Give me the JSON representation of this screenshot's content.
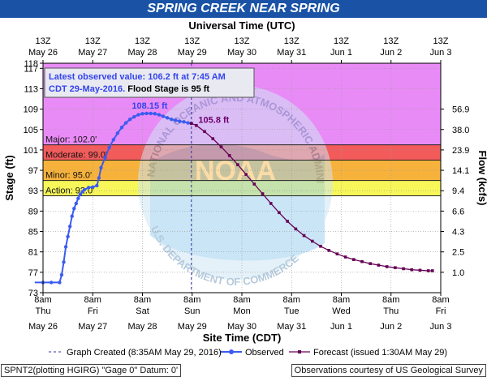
{
  "window": {
    "title": "SPRING CREEK NEAR SPRING"
  },
  "chart_data": {
    "type": "line",
    "title": "SPRING CREEK NEAR SPRING",
    "top_axis_label": "Universal Time (UTC)",
    "xlabel": "Site Time (CDT)",
    "ylabel": "Stage (ft)",
    "y2label": "Flow (kcfs)",
    "ylim": [
      73,
      118
    ],
    "xlim_hours": [
      0,
      192
    ],
    "y_ticks": [
      73,
      77,
      81,
      85,
      89,
      93,
      97,
      101,
      105,
      109,
      113,
      117,
      118
    ],
    "flow_ticks": [
      {
        "stage": 77,
        "label": "1.0"
      },
      {
        "stage": 81,
        "label": "2.5"
      },
      {
        "stage": 85,
        "label": "4.3"
      },
      {
        "stage": 89,
        "label": "6.6"
      },
      {
        "stage": 93,
        "label": "9.4"
      },
      {
        "stage": 97,
        "label": "14.1"
      },
      {
        "stage": 101,
        "label": "23.9"
      },
      {
        "stage": 105,
        "label": "38.0"
      },
      {
        "stage": 109,
        "label": "56.9"
      }
    ],
    "top_ticks": [
      {
        "hour": 0,
        "time": "13Z",
        "date": "May 26"
      },
      {
        "hour": 24,
        "time": "13Z",
        "date": "May 27"
      },
      {
        "hour": 48,
        "time": "13Z",
        "date": "May 28"
      },
      {
        "hour": 72,
        "time": "13Z",
        "date": "May 29"
      },
      {
        "hour": 96,
        "time": "13Z",
        "date": "May 30"
      },
      {
        "hour": 120,
        "time": "13Z",
        "date": "May 31"
      },
      {
        "hour": 144,
        "time": "13Z",
        "date": "Jun 1"
      },
      {
        "hour": 168,
        "time": "13Z",
        "date": "Jun 2"
      },
      {
        "hour": 192,
        "time": "13Z",
        "date": "Jun 3"
      }
    ],
    "bottom_ticks": [
      {
        "hour": 0,
        "time": "8am",
        "day": "Thu",
        "date": "May 26"
      },
      {
        "hour": 24,
        "time": "8am",
        "day": "Fri",
        "date": "May 27"
      },
      {
        "hour": 48,
        "time": "8am",
        "day": "Sat",
        "date": "May 28"
      },
      {
        "hour": 72,
        "time": "8am",
        "day": "Sun",
        "date": "May 29"
      },
      {
        "hour": 96,
        "time": "8am",
        "day": "Mon",
        "date": "May 30"
      },
      {
        "hour": 120,
        "time": "8am",
        "day": "Tue",
        "date": "May 31"
      },
      {
        "hour": 144,
        "time": "8am",
        "day": "Wed",
        "date": "Jun 1"
      },
      {
        "hour": 168,
        "time": "8am",
        "day": "Thu",
        "date": "Jun 2"
      },
      {
        "hour": 192,
        "time": "8am",
        "day": "Fri",
        "date": "Jun 3"
      }
    ],
    "flood_categories": [
      {
        "name": "Major",
        "label": "Major: 102.0'",
        "stage": 102.0,
        "color": "#e98bf6"
      },
      {
        "name": "Moderate",
        "label": "Moderate: 99.0'",
        "stage": 99.0,
        "color": "#f35a5a"
      },
      {
        "name": "Minor",
        "label": "Minor: 95.0'",
        "stage": 95.0,
        "color": "#f7b23c"
      },
      {
        "name": "Action",
        "label": "Action: 92.0'",
        "stage": 92.0,
        "color": "#f7f75a"
      }
    ],
    "latest_observed": {
      "line1": "Latest observed value: 106.2 ft at 7:45 AM",
      "line2": "CDT 29-May-2016.",
      "flood_stage": "Flood Stage is 95 ft"
    },
    "annotations": [
      {
        "text": "108.15 ft",
        "hour": 51.5,
        "stage": 108.15,
        "color": "#3344ee"
      },
      {
        "text": "105.8 ft",
        "hour": 75,
        "stage": 105.8,
        "color": "#6a006a"
      }
    ],
    "graph_created_hour": 71.6,
    "series": [
      {
        "name": "Observed",
        "color": "#3b5cf0",
        "points": [
          [
            -4,
            75
          ],
          [
            0,
            75
          ],
          [
            4,
            75
          ],
          [
            8,
            75
          ],
          [
            9,
            76.5
          ],
          [
            10,
            79
          ],
          [
            11,
            82
          ],
          [
            12,
            84
          ],
          [
            13,
            86
          ],
          [
            14,
            88
          ],
          [
            15,
            89.5
          ],
          [
            16,
            90.5
          ],
          [
            17,
            91.5
          ],
          [
            18,
            92.3
          ],
          [
            19,
            92.8
          ],
          [
            20,
            93.2
          ],
          [
            22,
            93.6
          ],
          [
            24,
            93.7
          ],
          [
            26,
            94
          ],
          [
            27,
            95.5
          ],
          [
            28,
            97.5
          ],
          [
            30,
            99.5
          ],
          [
            32,
            101.5
          ],
          [
            34,
            103
          ],
          [
            36,
            104.3
          ],
          [
            38,
            105.4
          ],
          [
            40,
            106.3
          ],
          [
            42,
            107
          ],
          [
            44,
            107.5
          ],
          [
            46,
            107.9
          ],
          [
            48,
            108.1
          ],
          [
            50,
            108.15
          ],
          [
            52,
            108.15
          ],
          [
            54,
            108.1
          ],
          [
            56,
            107.9
          ],
          [
            58,
            107.6
          ],
          [
            60,
            107.3
          ],
          [
            62,
            107
          ],
          [
            64,
            106.8
          ],
          [
            66,
            106.6
          ],
          [
            68,
            106.5
          ],
          [
            70,
            106.3
          ],
          [
            71.6,
            106.2
          ]
        ]
      },
      {
        "name": "Forecast (issued 1:30AM May 29)",
        "color": "#660055",
        "points": [
          [
            71.6,
            106.2
          ],
          [
            74,
            105.8
          ],
          [
            78,
            104.6
          ],
          [
            82,
            103.2
          ],
          [
            86,
            101.6
          ],
          [
            90,
            99.9
          ],
          [
            94,
            98.1
          ],
          [
            98,
            96.2
          ],
          [
            102,
            94.3
          ],
          [
            106,
            92.4
          ],
          [
            110,
            90.5
          ],
          [
            114,
            88.7
          ],
          [
            118,
            87
          ],
          [
            122,
            85.5
          ],
          [
            126,
            84.2
          ],
          [
            130,
            83.1
          ],
          [
            134,
            82.1
          ],
          [
            138,
            81.3
          ],
          [
            142,
            80.6
          ],
          [
            146,
            80
          ],
          [
            150,
            79.5
          ],
          [
            154,
            79.1
          ],
          [
            158,
            78.7
          ],
          [
            162,
            78.4
          ],
          [
            166,
            78.1
          ],
          [
            170,
            77.9
          ],
          [
            174,
            77.7
          ],
          [
            178,
            77.5
          ],
          [
            182,
            77.4
          ],
          [
            186,
            77.3
          ],
          [
            188,
            77.3
          ]
        ]
      }
    ],
    "legend": {
      "graph_created": "Graph Created (8:35AM May 29, 2016)",
      "observed": "Observed",
      "forecast": "Forecast (issued 1:30AM May 29)"
    },
    "watermark": {
      "arc_top": "NATIONAL OCEANIC AND ATMOSPHERIC ADMINISTRATION",
      "arc_bottom": "U.S. DEPARTMENT OF COMMERCE",
      "center": "NOAA"
    }
  },
  "footer": {
    "left": "SPNT2(plotting HGIRG) \"Gage 0\" Datum: 0'",
    "right": "Observations courtesy of US Geological Survey"
  }
}
